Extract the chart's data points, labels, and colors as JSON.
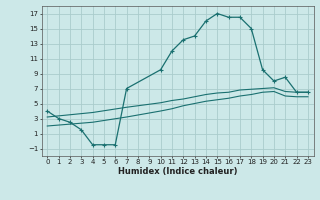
{
  "xlabel": "Humidex (Indice chaleur)",
  "bg_color": "#cce8e8",
  "line_color": "#1a7070",
  "grid_color": "#aacccc",
  "xlim": [
    -0.5,
    23.5
  ],
  "ylim": [
    -2,
    18
  ],
  "xticks": [
    0,
    1,
    2,
    3,
    4,
    5,
    6,
    7,
    8,
    9,
    10,
    11,
    12,
    13,
    14,
    15,
    16,
    17,
    18,
    19,
    20,
    21,
    22,
    23
  ],
  "yticks": [
    -1,
    1,
    3,
    5,
    7,
    9,
    11,
    13,
    15,
    17
  ],
  "curve1_x": [
    0,
    1,
    2,
    3,
    4,
    5,
    6,
    7,
    10,
    11,
    12,
    13,
    14,
    15,
    16,
    17,
    18,
    19,
    20,
    21,
    22,
    23
  ],
  "curve1_y": [
    4,
    3,
    2.5,
    1.5,
    -0.5,
    -0.5,
    -0.5,
    7,
    9.5,
    12,
    13.5,
    14,
    16,
    17,
    16.5,
    16.5,
    15,
    9.5,
    8,
    8.5,
    6.5,
    6.5
  ],
  "curve2_x": [
    0,
    4,
    7,
    10,
    11,
    12,
    13,
    14,
    15,
    16,
    17,
    18,
    19,
    20,
    21,
    22,
    23
  ],
  "curve2_y": [
    3.2,
    3.8,
    4.5,
    5.1,
    5.4,
    5.6,
    5.9,
    6.2,
    6.4,
    6.5,
    6.8,
    6.9,
    7.0,
    7.1,
    6.6,
    6.5,
    6.5
  ],
  "curve3_x": [
    0,
    4,
    7,
    10,
    11,
    12,
    13,
    14,
    15,
    16,
    17,
    18,
    19,
    20,
    21,
    22,
    23
  ],
  "curve3_y": [
    2.0,
    2.5,
    3.2,
    4.0,
    4.3,
    4.7,
    5.0,
    5.3,
    5.5,
    5.7,
    6.0,
    6.2,
    6.5,
    6.6,
    6.0,
    5.9,
    5.9
  ]
}
